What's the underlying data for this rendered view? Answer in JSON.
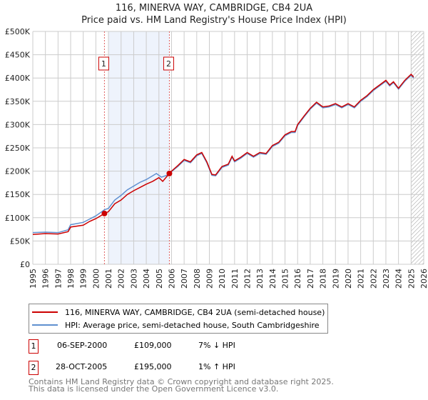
{
  "chart_data": {
    "type": "line",
    "title": "116, MINERVA WAY, CAMBRIDGE, CB4 2UA",
    "subtitle": "Price paid vs. HM Land Registry's House Price Index (HPI)",
    "xlim": [
      1995,
      2026
    ],
    "ylim": [
      0,
      500000
    ],
    "yticks": [
      0,
      50000,
      100000,
      150000,
      200000,
      250000,
      300000,
      350000,
      400000,
      450000,
      500000
    ],
    "ytick_labels": [
      "£0",
      "£50K",
      "£100K",
      "£150K",
      "£200K",
      "£250K",
      "£300K",
      "£350K",
      "£400K",
      "£450K",
      "£500K"
    ],
    "xticks": [
      "1995",
      "1996",
      "1997",
      "1998",
      "1999",
      "2000",
      "2001",
      "2002",
      "2003",
      "2004",
      "2005",
      "2006",
      "2007",
      "2008",
      "2009",
      "2010",
      "2011",
      "2012",
      "2013",
      "2014",
      "2015",
      "2016",
      "2017",
      "2018",
      "2019",
      "2020",
      "2021",
      "2022",
      "2023",
      "2024",
      "2025",
      "2026"
    ],
    "grid": true,
    "shaded_region": [
      2001.0,
      2005.83
    ],
    "forecast_hatch_from": 2025.0,
    "series": [
      {
        "name": "116, MINERVA WAY, CAMBRIDGE, CB4 2UA (semi-detached house)",
        "color": "#cc0000",
        "x": [
          1995,
          1996,
          1997,
          1997.8,
          1998,
          1999,
          1999.5,
          2000,
          2000.68,
          2001,
          2001.5,
          2002,
          2002.5,
          2003,
          2003.5,
          2004,
          2004.5,
          2005,
          2005.3,
          2005.83,
          2006,
          2006.5,
          2007,
          2007.5,
          2008,
          2008.4,
          2008.8,
          2009.2,
          2009.5,
          2010,
          2010.5,
          2010.8,
          2011,
          2011.5,
          2012,
          2012.5,
          2013,
          2013.5,
          2014,
          2014.5,
          2015,
          2015.5,
          2015.8,
          2016,
          2016.5,
          2017,
          2017.5,
          2018,
          2018.5,
          2019,
          2019.5,
          2020,
          2020.5,
          2021,
          2021.5,
          2022,
          2022.5,
          2023,
          2023.3,
          2023.6,
          2024,
          2024.5,
          2025,
          2025.2
        ],
        "y": [
          64000,
          66000,
          65000,
          70000,
          80000,
          84000,
          92000,
          98000,
          109000,
          113000,
          130000,
          138000,
          150000,
          158000,
          165000,
          172000,
          178000,
          186000,
          178000,
          195000,
          200000,
          212000,
          225000,
          220000,
          235000,
          240000,
          220000,
          193000,
          192000,
          210000,
          215000,
          232000,
          222000,
          230000,
          240000,
          232000,
          240000,
          238000,
          255000,
          262000,
          278000,
          285000,
          285000,
          300000,
          318000,
          335000,
          348000,
          338000,
          340000,
          345000,
          338000,
          345000,
          338000,
          352000,
          362000,
          375000,
          385000,
          395000,
          385000,
          392000,
          378000,
          395000,
          408000,
          402000
        ]
      },
      {
        "name": "HPI: Average price, semi-detached house, South Cambridgeshire",
        "color": "#6090d0",
        "x": [
          1995,
          1996,
          1997,
          1997.8,
          1998,
          1999,
          1999.5,
          2000,
          2000.68,
          2001,
          2001.5,
          2002,
          2002.5,
          2003,
          2003.5,
          2004,
          2004.5,
          2004.8,
          2005.2,
          2005.83,
          2006,
          2006.5,
          2007,
          2007.5,
          2008,
          2008.4,
          2008.8,
          2009.2,
          2009.5,
          2010,
          2010.5,
          2010.8,
          2011,
          2011.5,
          2012,
          2012.5,
          2013,
          2013.5,
          2014,
          2014.5,
          2015,
          2015.5,
          2015.8,
          2016,
          2016.5,
          2017,
          2017.5,
          2018,
          2018.5,
          2019,
          2019.5,
          2020,
          2020.5,
          2021,
          2021.5,
          2022,
          2022.5,
          2023,
          2023.3,
          2023.6,
          2024,
          2024.5,
          2025,
          2025.2
        ],
        "y": [
          68000,
          69000,
          68000,
          74000,
          85000,
          90000,
          97000,
          104000,
          117000,
          120000,
          138000,
          148000,
          160000,
          168000,
          176000,
          182000,
          190000,
          195000,
          187000,
          193000,
          199000,
          210000,
          223000,
          218000,
          233000,
          238000,
          218000,
          191000,
          190000,
          208000,
          213000,
          230000,
          220000,
          228000,
          238000,
          230000,
          238000,
          236000,
          253000,
          260000,
          276000,
          283000,
          283000,
          298000,
          316000,
          333000,
          346000,
          336000,
          338000,
          343000,
          336000,
          343000,
          336000,
          350000,
          360000,
          373000,
          383000,
          393000,
          383000,
          390000,
          376000,
          393000,
          406000,
          400000
        ]
      }
    ],
    "annotations": [
      {
        "label": "1",
        "x": 2000.68,
        "y": 109000
      },
      {
        "label": "2",
        "x": 2005.83,
        "y": 195000
      }
    ]
  },
  "legend": {
    "red": "116, MINERVA WAY, CAMBRIDGE, CB4 2UA (semi-detached house)",
    "blue": "HPI: Average price, semi-detached house, South Cambridgeshire"
  },
  "sales": [
    {
      "num": "1",
      "date": "06-SEP-2000",
      "price": "£109,000",
      "hpi": "7% ↓ HPI"
    },
    {
      "num": "2",
      "date": "28-OCT-2005",
      "price": "£195,000",
      "hpi": "1% ↑ HPI"
    }
  ],
  "footer": {
    "line1": "Contains HM Land Registry data © Crown copyright and database right 2025.",
    "line2": "This data is licensed under the Open Government Licence v3.0."
  }
}
